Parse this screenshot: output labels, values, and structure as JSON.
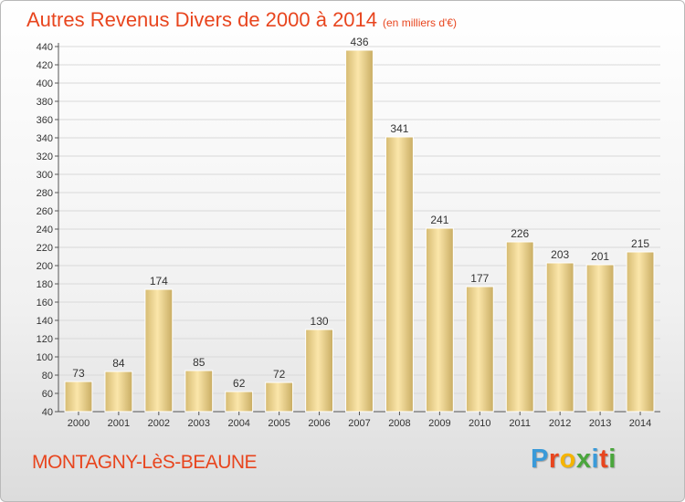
{
  "title": {
    "main": "Autres Revenus Divers de 2000 à 2014",
    "sub": "(en milliers d'€)"
  },
  "commune": "MONTAGNY-LèS-BEAUNE",
  "logo": {
    "letters": [
      {
        "char": "P",
        "color": "#3a9ad9"
      },
      {
        "char": "r",
        "color": "#e8451e"
      },
      {
        "char": "o",
        "color": "#f5b400"
      },
      {
        "char": "x",
        "color": "#4aa63c"
      },
      {
        "char": "i",
        "color": "#3a9ad9"
      },
      {
        "char": "t",
        "color": "#e8451e"
      },
      {
        "char": "i",
        "color": "#4aa63c"
      }
    ]
  },
  "colors": {
    "accent": "#e8451e",
    "bar_light": "#f8e2a3",
    "bar_dark": "#ccb16a",
    "grid": "#d9d9d9"
  },
  "chart_data": {
    "type": "bar",
    "categories": [
      "2000",
      "2001",
      "2002",
      "2003",
      "2004",
      "2005",
      "2006",
      "2007",
      "2008",
      "2009",
      "2010",
      "2011",
      "2012",
      "2013",
      "2014"
    ],
    "values": [
      73,
      84,
      174,
      85,
      62,
      72,
      130,
      436,
      341,
      241,
      177,
      226,
      203,
      201,
      215
    ],
    "ylim": [
      40,
      440
    ],
    "yticks": [
      40,
      60,
      80,
      100,
      120,
      140,
      160,
      180,
      200,
      220,
      240,
      260,
      280,
      300,
      320,
      340,
      360,
      380,
      400,
      420,
      440
    ],
    "grid": true
  }
}
